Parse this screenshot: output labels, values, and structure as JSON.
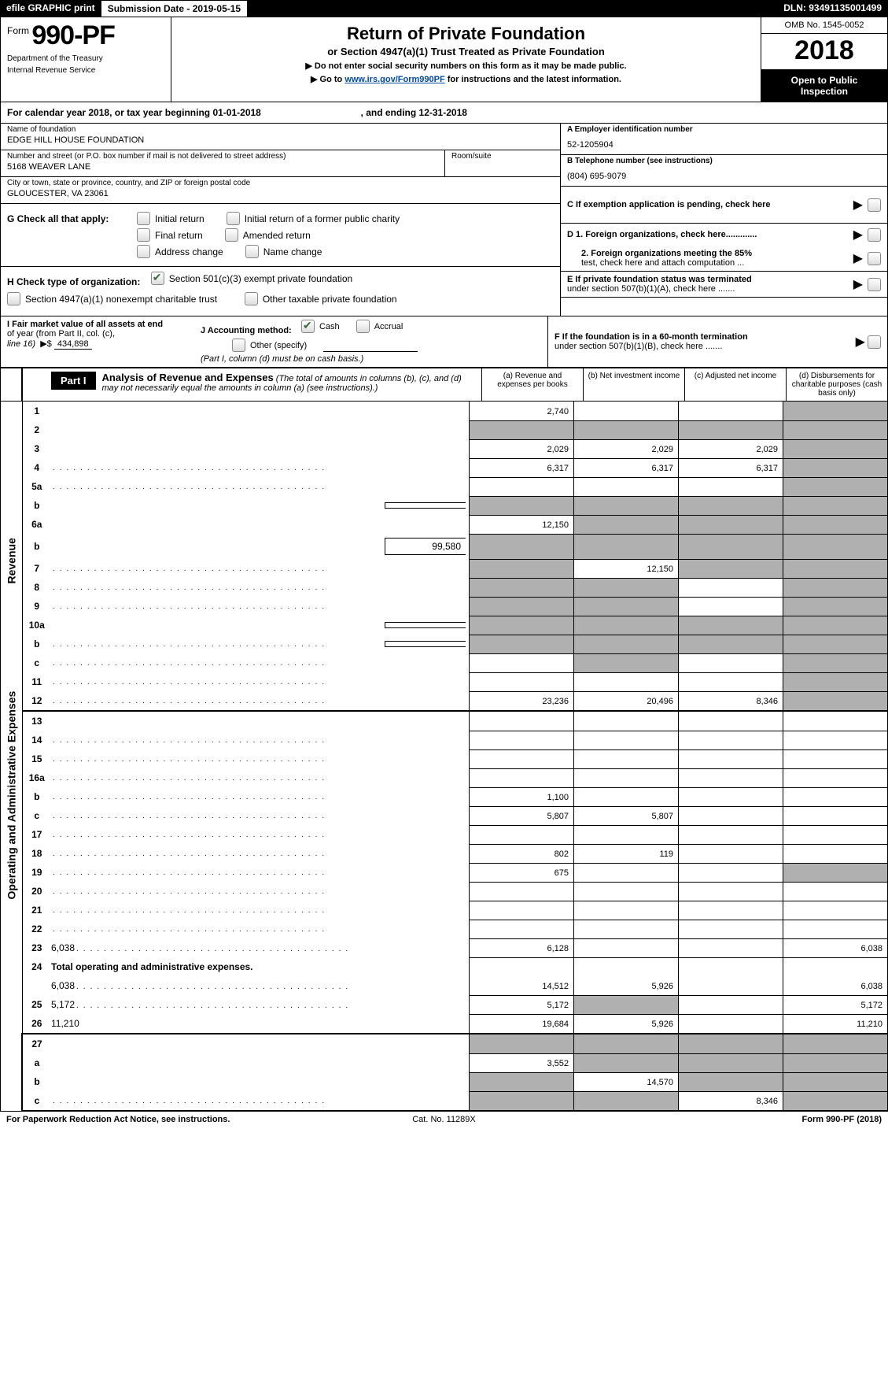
{
  "topbar": {
    "efile": "efile GRAPHIC print",
    "submission_label": "Submission Date - ",
    "submission_date": "2019-05-15",
    "dln_label": "DLN: ",
    "dln": "93491135001499"
  },
  "header": {
    "form_word": "Form",
    "form_number": "990-PF",
    "dept1": "Department of the Treasury",
    "dept2": "Internal Revenue Service",
    "title": "Return of Private Foundation",
    "subtitle": "or Section 4947(a)(1) Trust Treated as Private Foundation",
    "caution1": "▶ Do not enter social security numbers on this form as it may be made public.",
    "caution2_pre": "▶ Go to ",
    "caution2_link": "www.irs.gov/Form990PF",
    "caution2_post": " for instructions and the latest information.",
    "omb": "OMB No. 1545-0052",
    "year": "2018",
    "open1": "Open to Public",
    "open2": "Inspection"
  },
  "calendar": {
    "text_pre": "For calendar year 2018, or tax year beginning ",
    "begin": "01-01-2018",
    "mid": " , and ending ",
    "end": "12-31-2018"
  },
  "info": {
    "name_label": "Name of foundation",
    "name": "EDGE HILL HOUSE FOUNDATION",
    "addr_label": "Number and street (or P.O. box number if mail is not delivered to street address)",
    "addr": "5168 WEAVER LANE",
    "room_label": "Room/suite",
    "city_label": "City or town, state or province, country, and ZIP or foreign postal code",
    "city": "GLOUCESTER, VA  23061",
    "a_label": "A Employer identification number",
    "a_val": "52-1205904",
    "b_label": "B Telephone number (see instructions)",
    "b_val": "(804) 695-9079",
    "c_label": "C  If exemption application is pending, check here",
    "d1": "D 1. Foreign organizations, check here.............",
    "d2a": "2. Foreign organizations meeting the 85%",
    "d2b": "test, check here and attach computation ...",
    "e1": "E  If private foundation status was terminated",
    "e2": "under section 507(b)(1)(A), check here .......",
    "f1": "F  If the foundation is in a 60-month termination",
    "f2": "under section 507(b)(1)(B), check here ......."
  },
  "sectionG": {
    "label": "G Check all that apply:",
    "opts": [
      "Initial return",
      "Initial return of a former public charity",
      "Final return",
      "Amended return",
      "Address change",
      "Name change"
    ]
  },
  "sectionH": {
    "label": "H Check type of organization:",
    "opt1": "Section 501(c)(3) exempt private foundation",
    "opt2": "Section 4947(a)(1) nonexempt charitable trust",
    "opt3": "Other taxable private foundation"
  },
  "sectionI": {
    "label1": "I Fair market value of all assets at end",
    "label2": "of year (from Part II, col. (c),",
    "label3": "line 16)",
    "value": "434,898",
    "j_label": "J Accounting method:",
    "j_cash": "Cash",
    "j_accrual": "Accrual",
    "j_other": "Other (specify)",
    "j_note": "(Part I, column (d) must be on cash basis.)"
  },
  "part1": {
    "label": "Part I",
    "title": "Analysis of Revenue and Expenses",
    "note": " (The total of amounts in columns (b), (c), and (d) may not necessarily equal the amounts in column (a) (see instructions).)",
    "cols": {
      "a": "(a)     Revenue and expenses per books",
      "b": "(b)     Net investment income",
      "c": "(c)     Adjusted net income",
      "d": "(d)     Disbursements for charitable purposes (cash basis only)"
    }
  },
  "sidebar": {
    "revenue": "Revenue",
    "expenses": "Operating and Administrative Expenses"
  },
  "rows": [
    {
      "n": "1",
      "d": "",
      "a": "2,740",
      "b": "",
      "c": "",
      "dots": false,
      "shade": [
        "d"
      ]
    },
    {
      "n": "2",
      "d": "",
      "a": "",
      "b": "",
      "c": "",
      "shade": [
        "a",
        "b",
        "c",
        "d"
      ],
      "cb": true
    },
    {
      "n": "3",
      "d": "",
      "a": "2,029",
      "b": "2,029",
      "c": "2,029",
      "shade": [
        "d"
      ]
    },
    {
      "n": "4",
      "d": "",
      "a": "6,317",
      "b": "6,317",
      "c": "6,317",
      "dots": true,
      "shade": [
        "d"
      ]
    },
    {
      "n": "5a",
      "d": "",
      "a": "",
      "b": "",
      "c": "",
      "dots": true,
      "shade": [
        "d"
      ]
    },
    {
      "n": "b",
      "d": "",
      "a": "",
      "b": "",
      "c": "",
      "shade": [
        "a",
        "b",
        "c",
        "d"
      ],
      "inline": true,
      "inline_val": ""
    },
    {
      "n": "6a",
      "d": "",
      "a": "12,150",
      "b": "",
      "c": "",
      "shade": [
        "b",
        "c",
        "d"
      ]
    },
    {
      "n": "b",
      "d": "",
      "a": "",
      "b": "",
      "c": "",
      "shade": [
        "a",
        "b",
        "c",
        "d"
      ],
      "inline": true,
      "inline_val": "99,580"
    },
    {
      "n": "7",
      "d": "",
      "a": "",
      "b": "12,150",
      "c": "",
      "dots": true,
      "shade": [
        "a",
        "c",
        "d"
      ]
    },
    {
      "n": "8",
      "d": "",
      "a": "",
      "b": "",
      "c": "",
      "dots": true,
      "shade": [
        "a",
        "b",
        "d"
      ]
    },
    {
      "n": "9",
      "d": "",
      "a": "",
      "b": "",
      "c": "",
      "dots": true,
      "shade": [
        "a",
        "b",
        "d"
      ]
    },
    {
      "n": "10a",
      "d": "",
      "a": "",
      "b": "",
      "c": "",
      "shade": [
        "a",
        "b",
        "c",
        "d"
      ],
      "inline": true,
      "inline_val": ""
    },
    {
      "n": "b",
      "d": "",
      "a": "",
      "b": "",
      "c": "",
      "dots": true,
      "shade": [
        "a",
        "b",
        "c",
        "d"
      ],
      "inline": true,
      "inline_val": ""
    },
    {
      "n": "c",
      "d": "",
      "a": "",
      "b": "",
      "c": "",
      "dots": true,
      "shade": [
        "b",
        "d"
      ]
    },
    {
      "n": "11",
      "d": "",
      "a": "",
      "b": "",
      "c": "",
      "dots": true,
      "shade": [
        "d"
      ]
    },
    {
      "n": "12",
      "d": "",
      "a": "23,236",
      "b": "20,496",
      "c": "8,346",
      "dots": true,
      "shade": [
        "d"
      ],
      "thick": true
    },
    {
      "n": "13",
      "d": "",
      "a": "",
      "b": "",
      "c": ""
    },
    {
      "n": "14",
      "d": "",
      "a": "",
      "b": "",
      "c": "",
      "dots": true
    },
    {
      "n": "15",
      "d": "",
      "a": "",
      "b": "",
      "c": "",
      "dots": true
    },
    {
      "n": "16a",
      "d": "",
      "a": "",
      "b": "",
      "c": "",
      "dots": true
    },
    {
      "n": "b",
      "d": "",
      "a": "1,100",
      "b": "",
      "c": "",
      "dots": true
    },
    {
      "n": "c",
      "d": "",
      "a": "5,807",
      "b": "5,807",
      "c": "",
      "dots": true
    },
    {
      "n": "17",
      "d": "",
      "a": "",
      "b": "",
      "c": "",
      "dots": true
    },
    {
      "n": "18",
      "d": "",
      "a": "802",
      "b": "119",
      "c": "",
      "dots": true
    },
    {
      "n": "19",
      "d": "",
      "a": "675",
      "b": "",
      "c": "",
      "dots": true,
      "shade": [
        "d"
      ]
    },
    {
      "n": "20",
      "d": "",
      "a": "",
      "b": "",
      "c": "",
      "dots": true
    },
    {
      "n": "21",
      "d": "",
      "a": "",
      "b": "",
      "c": "",
      "dots": true
    },
    {
      "n": "22",
      "d": "",
      "a": "",
      "b": "",
      "c": "",
      "dots": true
    },
    {
      "n": "23",
      "d": "6,038",
      "a": "6,128",
      "b": "",
      "c": "",
      "dots": true
    },
    {
      "n": "24",
      "d": "<b>Total operating and administrative expenses.</b>",
      "nb": true
    },
    {
      "n": "",
      "d": "6,038",
      "a": "14,512",
      "b": "5,926",
      "c": "",
      "dots": true
    },
    {
      "n": "25",
      "d": "5,172",
      "a": "5,172",
      "b": "",
      "c": "",
      "dots": true,
      "shade": [
        "b"
      ]
    },
    {
      "n": "26",
      "d": "11,210",
      "a": "19,684",
      "b": "5,926",
      "c": "",
      "thick": true,
      "tall": true
    },
    {
      "n": "27",
      "d": "",
      "a": "",
      "b": "",
      "c": "",
      "shade": [
        "a",
        "b",
        "c",
        "d"
      ],
      "noside": true
    },
    {
      "n": "a",
      "d": "",
      "a": "3,552",
      "b": "",
      "c": "",
      "shade": [
        "b",
        "c",
        "d"
      ],
      "noside": true,
      "tall": true
    },
    {
      "n": "b",
      "d": "",
      "a": "",
      "b": "14,570",
      "c": "",
      "shade": [
        "a",
        "c",
        "d"
      ],
      "noside": true,
      "tall": true
    },
    {
      "n": "c",
      "d": "",
      "a": "",
      "b": "",
      "c": "8,346",
      "dots": true,
      "shade": [
        "a",
        "b",
        "d"
      ],
      "noside": true,
      "border": true
    }
  ],
  "footer": {
    "left": "For Paperwork Reduction Act Notice, see instructions.",
    "mid": "Cat. No. 11289X",
    "right_pre": "Form ",
    "right_bold": "990-PF",
    "right_post": " (2018)"
  }
}
